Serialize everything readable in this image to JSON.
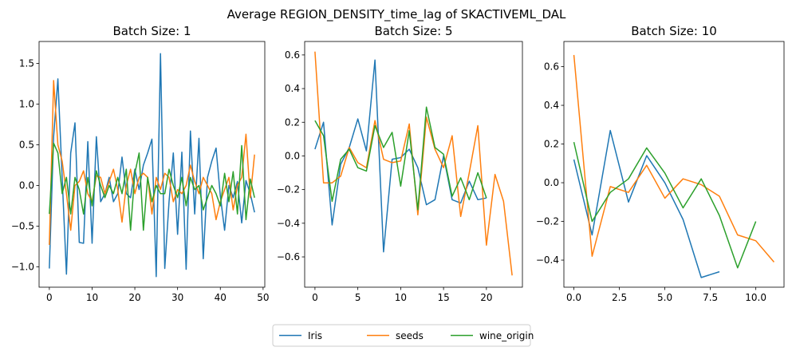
{
  "title": "Average REGION_DENSITY_time_lag of SKACTIVEML_DAL",
  "colors": {
    "Iris": "#1f77b4",
    "seeds": "#ff7f0e",
    "wine_origin": "#2ca02c"
  },
  "legend": {
    "placement": "bottom-center",
    "entries": [
      "Iris",
      "seeds",
      "wine_origin"
    ]
  },
  "chart_data": [
    {
      "type": "line",
      "title": "Batch Size: 1",
      "xlim": [
        -2.4,
        50.4
      ],
      "ylim": [
        -1.25,
        1.77
      ],
      "xticks": [
        0,
        10,
        20,
        30,
        40,
        50
      ],
      "xtick_labels": [
        "0",
        "10",
        "20",
        "30",
        "40",
        "50"
      ],
      "yticks": [
        -1.0,
        -0.5,
        0.0,
        0.5,
        1.0,
        1.5
      ],
      "ytick_labels": [
        "−1.0",
        "−0.5",
        "0.0",
        "0.5",
        "1.0",
        "1.5"
      ],
      "grid": false,
      "series": [
        {
          "name": "Iris",
          "x": [
            0,
            1,
            2,
            3,
            4,
            5,
            6,
            7,
            8,
            9,
            10,
            11,
            12,
            13,
            14,
            15,
            16,
            17,
            18,
            19,
            20,
            21,
            22,
            23,
            24,
            25,
            26,
            27,
            28,
            29,
            30,
            31,
            32,
            33,
            34,
            35,
            36,
            37,
            38,
            39,
            40,
            41,
            42,
            43,
            44,
            45,
            46,
            47,
            48
          ],
          "y": [
            -1.02,
            0.6,
            1.31,
            0.1,
            -1.09,
            0.4,
            0.77,
            -0.7,
            -0.71,
            0.54,
            -0.71,
            0.6,
            -0.2,
            -0.1,
            0.1,
            -0.2,
            -0.1,
            0.35,
            -0.1,
            -0.15,
            0.2,
            -0.05,
            0.25,
            0.4,
            0.57,
            -1.12,
            1.62,
            -1.02,
            -0.2,
            0.4,
            -0.6,
            0.41,
            -1.03,
            0.67,
            -0.35,
            0.58,
            -0.9,
            0.1,
            0.3,
            0.46,
            -0.13,
            -0.55,
            0.0,
            -0.15,
            0.05,
            -0.46,
            0.06,
            -0.1,
            -0.33
          ]
        },
        {
          "name": "seeds",
          "x": [
            0,
            1,
            2,
            3,
            4,
            5,
            6,
            7,
            8,
            9,
            10,
            11,
            12,
            13,
            14,
            15,
            16,
            17,
            18,
            19,
            20,
            21,
            22,
            23,
            24,
            25,
            26,
            27,
            28,
            29,
            30,
            31,
            32,
            33,
            34,
            35,
            36,
            37,
            38,
            39,
            40,
            41,
            42,
            43,
            44,
            45,
            46,
            47,
            48
          ],
          "y": [
            -0.73,
            1.29,
            0.5,
            0.3,
            -0.1,
            -0.55,
            0.0,
            0.05,
            0.18,
            -0.1,
            -0.2,
            0.12,
            0.1,
            -0.1,
            0.05,
            0.2,
            -0.05,
            -0.45,
            0.0,
            0.2,
            -0.1,
            0.1,
            0.15,
            0.1,
            -0.35,
            0.1,
            -0.05,
            0.15,
            0.1,
            -0.2,
            -0.05,
            -0.1,
            0.0,
            0.25,
            0.05,
            -0.1,
            0.1,
            0.0,
            -0.1,
            -0.42,
            -0.2,
            -0.05,
            0.1,
            -0.3,
            0.0,
            0.1,
            0.63,
            -0.15,
            0.38
          ]
        },
        {
          "name": "wine_origin",
          "x": [
            0,
            1,
            2,
            3,
            4,
            5,
            6,
            7,
            8,
            9,
            10,
            11,
            12,
            13,
            14,
            15,
            16,
            17,
            18,
            19,
            20,
            21,
            22,
            23,
            24,
            25,
            26,
            27,
            28,
            29,
            30,
            31,
            32,
            33,
            34,
            35,
            36,
            37,
            38,
            39,
            40,
            41,
            42,
            43,
            44,
            45,
            46,
            47,
            48
          ],
          "y": [
            -0.35,
            0.52,
            0.4,
            -0.1,
            0.1,
            -0.35,
            0.1,
            -0.05,
            -0.35,
            0.1,
            -0.25,
            0.18,
            0.0,
            -0.15,
            0.0,
            -0.1,
            0.1,
            -0.1,
            0.2,
            -0.55,
            0.15,
            0.4,
            -0.55,
            0.1,
            -0.2,
            0.0,
            -0.1,
            -0.1,
            0.2,
            0.0,
            -0.15,
            0.1,
            -0.25,
            0.1,
            -0.05,
            0.0,
            -0.3,
            -0.15,
            0.0,
            -0.1,
            -0.25,
            0.15,
            -0.2,
            0.17,
            -0.35,
            0.49,
            -0.42,
            0.08,
            -0.15
          ]
        }
      ]
    },
    {
      "type": "line",
      "title": "Batch Size: 5",
      "xlim": [
        -1.2,
        24.2
      ],
      "ylim": [
        -0.78,
        0.68
      ],
      "xticks": [
        0,
        5,
        10,
        15,
        20
      ],
      "xtick_labels": [
        "0",
        "5",
        "10",
        "15",
        "20"
      ],
      "yticks": [
        -0.6,
        -0.4,
        -0.2,
        0.0,
        0.2,
        0.4,
        0.6
      ],
      "ytick_labels": [
        "−0.6",
        "−0.4",
        "−0.2",
        "0.0",
        "0.2",
        "0.4",
        "0.6"
      ],
      "grid": false,
      "series": [
        {
          "name": "Iris",
          "x": [
            0,
            1,
            2,
            3,
            4,
            5,
            6,
            7,
            8,
            9,
            10,
            11,
            12,
            13,
            14,
            15,
            16,
            17,
            18,
            19,
            20
          ],
          "y": [
            0.04,
            0.2,
            -0.41,
            -0.05,
            0.05,
            0.22,
            0.03,
            0.57,
            -0.57,
            -0.02,
            -0.01,
            0.04,
            -0.07,
            -0.29,
            -0.26,
            0.0,
            -0.26,
            -0.28,
            -0.15,
            -0.26,
            -0.25
          ]
        },
        {
          "name": "seeds",
          "x": [
            0,
            1,
            2,
            3,
            4,
            5,
            6,
            7,
            8,
            9,
            10,
            11,
            12,
            13,
            14,
            15,
            16,
            17,
            18,
            19,
            20,
            21,
            22,
            23
          ],
          "y": [
            0.62,
            -0.16,
            -0.16,
            -0.12,
            0.05,
            -0.04,
            -0.07,
            0.21,
            -0.02,
            -0.04,
            -0.03,
            0.19,
            -0.35,
            0.23,
            0.04,
            -0.07,
            0.12,
            -0.36,
            -0.1,
            0.18,
            -0.53,
            -0.11,
            -0.27,
            -0.71
          ]
        },
        {
          "name": "wine_origin",
          "x": [
            0,
            1,
            2,
            3,
            4,
            5,
            6,
            7,
            8,
            9,
            10,
            11,
            12,
            13,
            14,
            15,
            16,
            17,
            18,
            19,
            20
          ],
          "y": [
            0.21,
            0.12,
            -0.27,
            -0.02,
            0.04,
            -0.07,
            -0.09,
            0.18,
            0.05,
            0.14,
            -0.18,
            0.15,
            -0.32,
            0.29,
            0.05,
            0.01,
            -0.24,
            -0.13,
            -0.26,
            -0.1,
            -0.25
          ]
        }
      ]
    },
    {
      "type": "line",
      "title": "Batch Size: 10",
      "xlim": [
        -0.55,
        11.55
      ],
      "ylim": [
        -0.54,
        0.73
      ],
      "xticks": [
        0,
        2.5,
        5,
        7.5,
        10
      ],
      "xtick_labels": [
        "0.0",
        "2.5",
        "5.0",
        "7.5",
        "10.0"
      ],
      "yticks": [
        -0.4,
        -0.2,
        0.0,
        0.2,
        0.4,
        0.6
      ],
      "ytick_labels": [
        "−0.4",
        "−0.2",
        "0.0",
        "0.2",
        "0.4",
        "0.6"
      ],
      "grid": false,
      "series": [
        {
          "name": "Iris",
          "x": [
            0,
            1,
            2,
            3,
            4,
            5,
            6,
            7,
            8
          ],
          "y": [
            0.12,
            -0.27,
            0.27,
            -0.1,
            0.14,
            0.0,
            -0.19,
            -0.49,
            -0.46
          ]
        },
        {
          "name": "seeds",
          "x": [
            0,
            1,
            2,
            3,
            4,
            5,
            6,
            7,
            8,
            9,
            10,
            11
          ],
          "y": [
            0.66,
            -0.38,
            -0.02,
            -0.05,
            0.09,
            -0.08,
            0.02,
            -0.01,
            -0.07,
            -0.27,
            -0.3,
            -0.41
          ]
        },
        {
          "name": "wine_origin",
          "x": [
            0,
            1,
            2,
            3,
            4,
            5,
            6,
            7,
            8,
            9,
            10
          ],
          "y": [
            0.21,
            -0.2,
            -0.05,
            0.02,
            0.18,
            0.05,
            -0.13,
            0.02,
            -0.17,
            -0.44,
            -0.2
          ]
        }
      ]
    }
  ]
}
